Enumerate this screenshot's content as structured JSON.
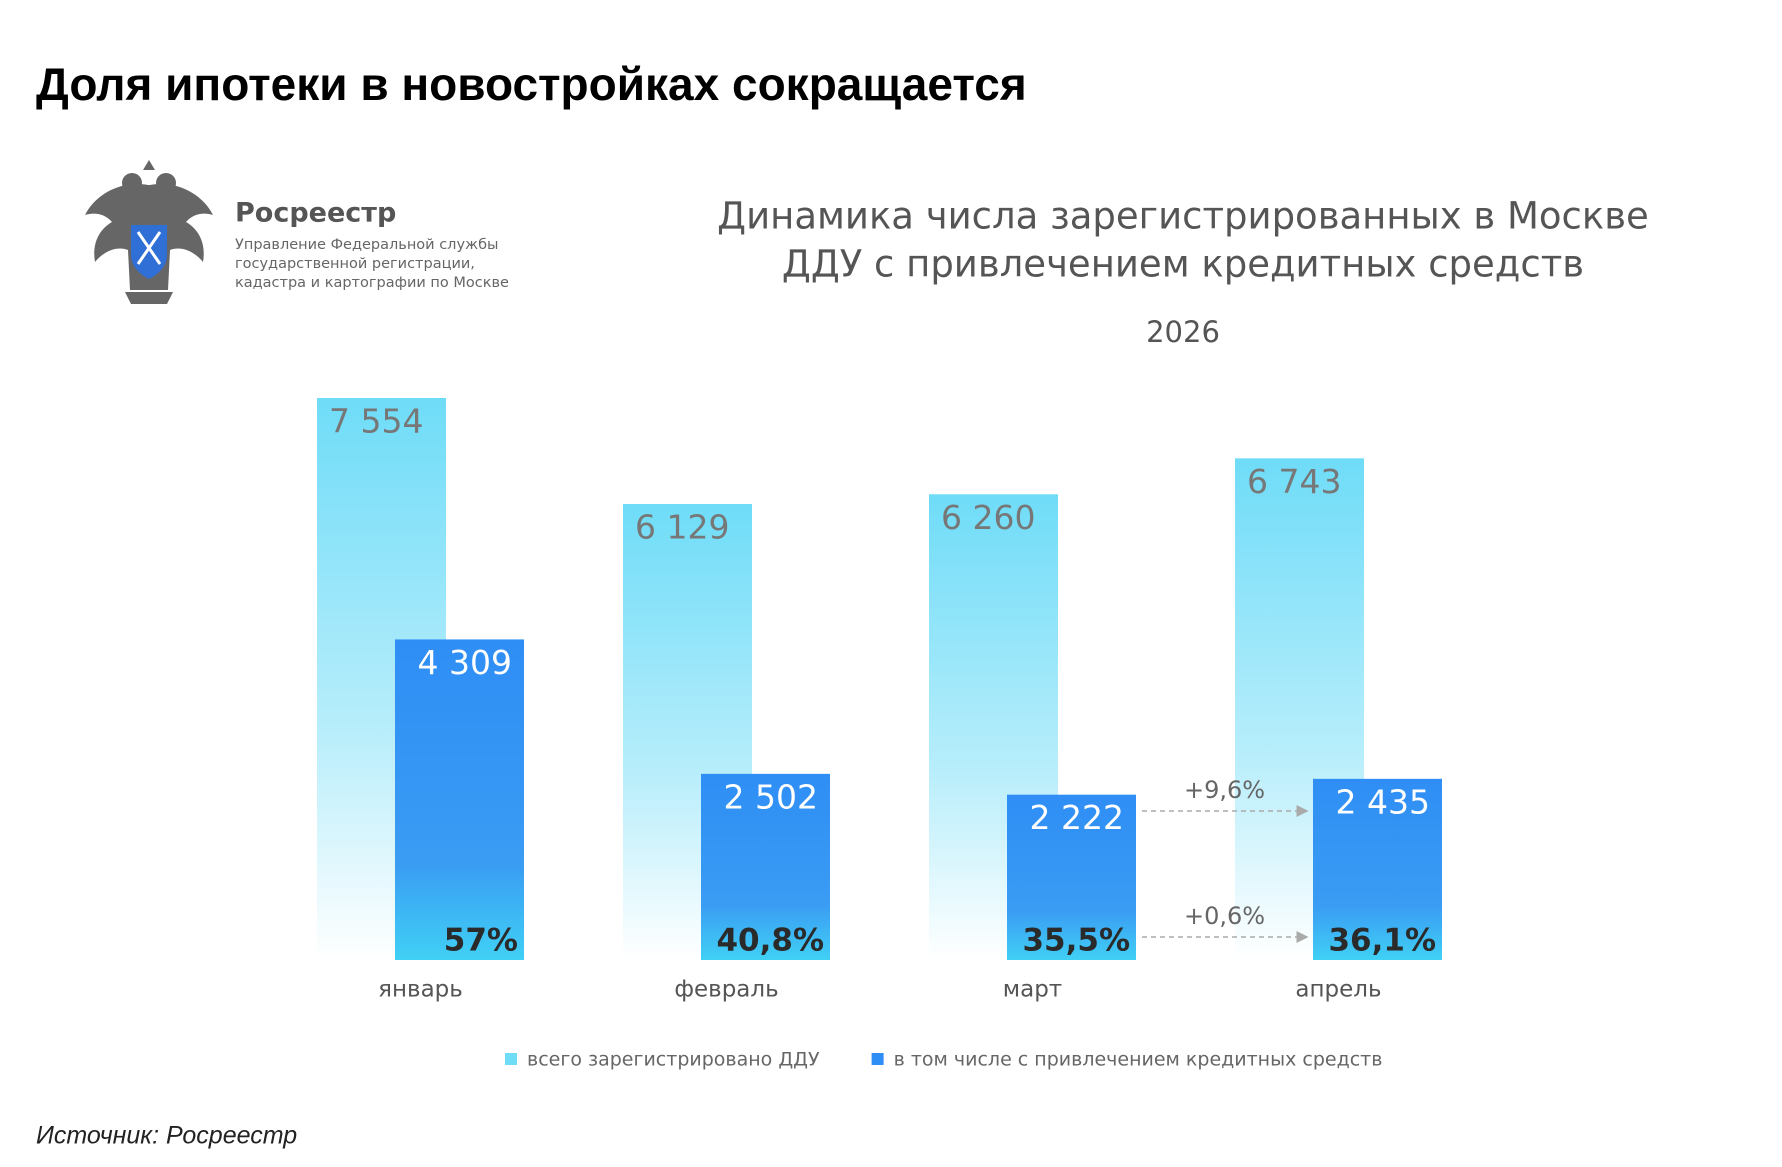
{
  "header": {
    "title": "Доля ипотеки в новостройках сокращается"
  },
  "logo": {
    "name": "Росреестр",
    "lines": [
      "Управление Федеральной службы",
      "государственной регистрации,",
      "кадастра и картографии по Москве"
    ]
  },
  "chart_data": {
    "type": "bar",
    "title": [
      "Динамика числа зарегистрированных в Москве",
      "ДДУ с привлечением кредитных средств"
    ],
    "subtitle": "2026",
    "categories": [
      "январь",
      "февраль",
      "март",
      "апрель"
    ],
    "series": [
      {
        "name": "всего зарегистрировано ДДУ",
        "color": "#6fdcf8",
        "values": [
          7554,
          6129,
          6260,
          6743
        ],
        "value_labels": [
          "7 554",
          "6 129",
          "6 260",
          "6 743"
        ]
      },
      {
        "name": "в том числе с привлечением кредитных средств",
        "color": "#2f8ef5",
        "values": [
          4309,
          2502,
          2222,
          2435
        ],
        "value_labels": [
          "4 309",
          "2 502",
          "2 222",
          "2 435"
        ]
      }
    ],
    "shares": {
      "values": [
        57,
        40.8,
        35.5,
        36.1
      ],
      "value_labels": [
        "57%",
        "40,8%",
        "35,5%",
        "36,1%"
      ]
    },
    "annotations": [
      "+9,6%",
      "+0,6%"
    ]
  },
  "source": "Источник: Росреестр"
}
